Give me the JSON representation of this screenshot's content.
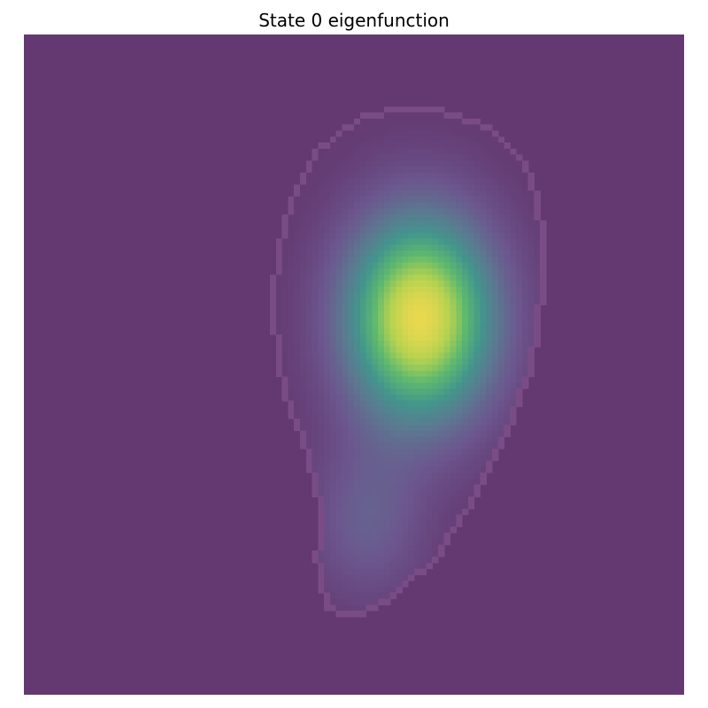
{
  "chart_data": {
    "type": "heatmap",
    "title": "State 0 eigenfunction",
    "xlabel": "",
    "ylabel": "",
    "axes_visible": false,
    "grid": false,
    "colormap": "viridis",
    "background_color": "#643870",
    "boundary_color": "#7a4c86",
    "peak_color": "#e8d84f",
    "grid_size": [
      110,
      110
    ],
    "eigenfunction_peak": {
      "x": 0.6,
      "y": 0.43,
      "value": 1.0
    },
    "domain_region": {
      "description_points": [
        [
          0.58,
          0.105
        ],
        [
          0.65,
          0.115
        ],
        [
          0.715,
          0.145
        ],
        [
          0.765,
          0.195
        ],
        [
          0.785,
          0.26
        ],
        [
          0.79,
          0.34
        ],
        [
          0.785,
          0.43
        ],
        [
          0.77,
          0.51
        ],
        [
          0.745,
          0.58
        ],
        [
          0.715,
          0.645
        ],
        [
          0.68,
          0.71
        ],
        [
          0.63,
          0.79
        ],
        [
          0.56,
          0.855
        ],
        [
          0.5,
          0.885
        ],
        [
          0.455,
          0.87
        ],
        [
          0.44,
          0.8
        ],
        [
          0.445,
          0.72
        ],
        [
          0.425,
          0.63
        ],
        [
          0.39,
          0.54
        ],
        [
          0.375,
          0.44
        ],
        [
          0.378,
          0.34
        ],
        [
          0.4,
          0.25
        ],
        [
          0.44,
          0.175
        ],
        [
          0.505,
          0.125
        ]
      ]
    }
  }
}
